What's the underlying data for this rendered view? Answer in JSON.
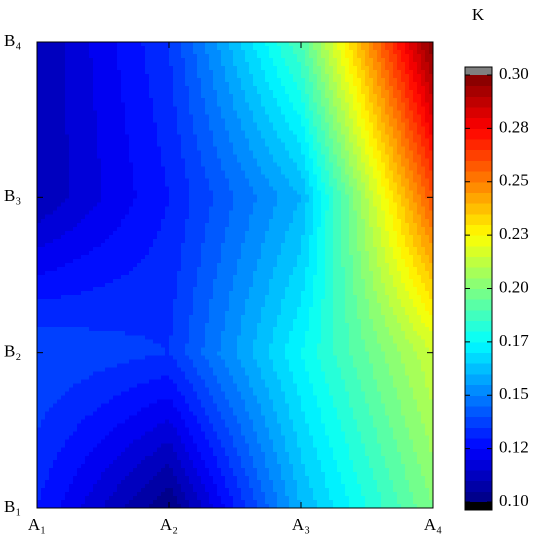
{
  "chart_data": {
    "type": "contour",
    "x_categories": [
      "A₁",
      "A₂",
      "A₃",
      "A₄"
    ],
    "y_categories": [
      "B₁",
      "B₂",
      "B₃",
      "B₄"
    ],
    "z": [
      [
        0.13,
        0.1,
        0.16,
        0.2
      ],
      [
        0.14,
        0.135,
        0.175,
        0.215
      ],
      [
        0.11,
        0.13,
        0.16,
        0.26
      ],
      [
        0.11,
        0.135,
        0.19,
        0.3
      ]
    ],
    "colorbar_title": "K",
    "zlim": [
      0.1,
      0.3
    ],
    "zticks": [
      {
        "value": 0.1,
        "label": "0.10"
      },
      {
        "value": 0.125,
        "label": "0.12"
      },
      {
        "value": 0.15,
        "label": "0.15"
      },
      {
        "value": 0.175,
        "label": "0.17"
      },
      {
        "value": 0.2,
        "label": "0.20"
      },
      {
        "value": 0.225,
        "label": "0.23"
      },
      {
        "value": 0.25,
        "label": "0.25"
      },
      {
        "value": 0.275,
        "label": "0.28"
      },
      {
        "value": 0.3,
        "label": "0.30"
      }
    ],
    "colormap": "jet",
    "over_color": "#808080",
    "under_color": "#000000"
  }
}
